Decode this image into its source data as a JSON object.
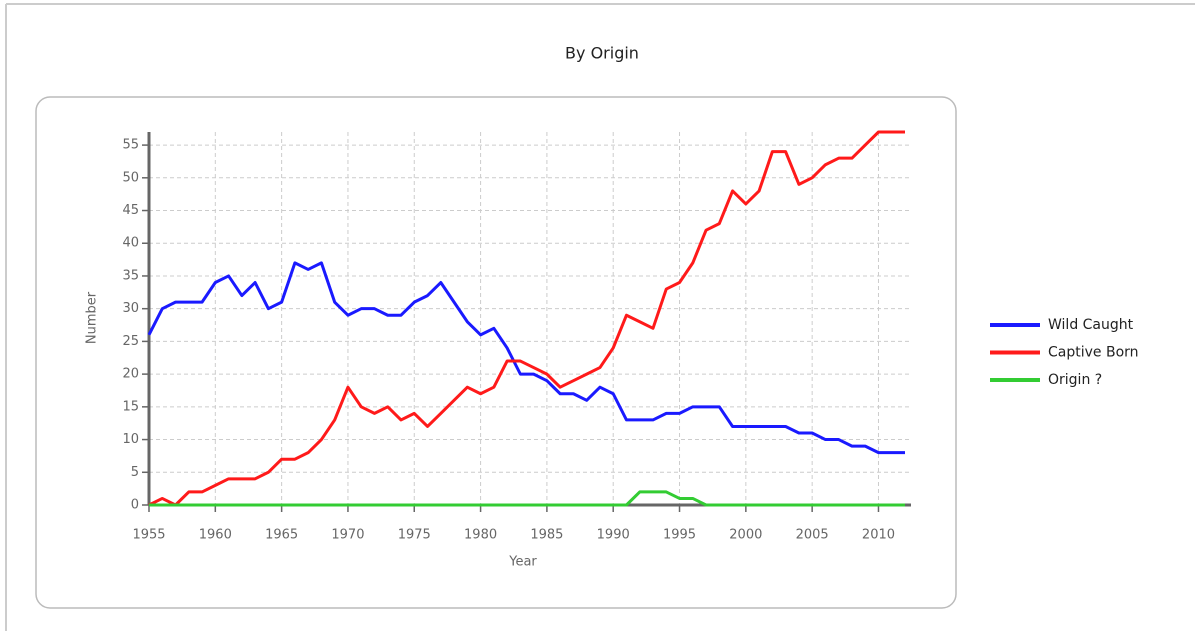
{
  "chart_data": {
    "type": "line",
    "title": "By Origin",
    "x_label": "Year",
    "y_label": "Number",
    "x": [
      1955,
      1956,
      1957,
      1958,
      1959,
      1960,
      1961,
      1962,
      1963,
      1964,
      1965,
      1966,
      1967,
      1968,
      1969,
      1970,
      1971,
      1972,
      1973,
      1974,
      1975,
      1976,
      1977,
      1978,
      1979,
      1980,
      1981,
      1982,
      1983,
      1984,
      1985,
      1986,
      1987,
      1988,
      1989,
      1990,
      1991,
      1992,
      1993,
      1994,
      1995,
      1996,
      1997,
      1998,
      1999,
      2000,
      2001,
      2002,
      2003,
      2004,
      2005,
      2006,
      2007,
      2008,
      2009,
      2010,
      2011,
      2012
    ],
    "series": [
      {
        "name": "Wild Caught",
        "color": "#1a1aff",
        "values": [
          26,
          30,
          31,
          31,
          31,
          34,
          35,
          32,
          34,
          30,
          31,
          37,
          36,
          37,
          31,
          29,
          30,
          30,
          29,
          29,
          31,
          32,
          34,
          31,
          28,
          26,
          27,
          24,
          20,
          20,
          19,
          17,
          17,
          16,
          18,
          17,
          13,
          13,
          13,
          14,
          14,
          15,
          15,
          15,
          12,
          12,
          12,
          12,
          12,
          11,
          11,
          10,
          10,
          9,
          9,
          8,
          8,
          8
        ]
      },
      {
        "name": "Captive Born",
        "color": "#ff1a1a",
        "values": [
          0,
          1,
          0,
          2,
          2,
          3,
          4,
          4,
          4,
          5,
          7,
          7,
          8,
          10,
          13,
          18,
          15,
          14,
          15,
          13,
          14,
          12,
          14,
          16,
          18,
          17,
          18,
          22,
          22,
          21,
          20,
          18,
          19,
          20,
          21,
          24,
          29,
          28,
          27,
          33,
          34,
          37,
          42,
          43,
          48,
          46,
          48,
          54,
          54,
          49,
          50,
          52,
          53,
          53,
          55,
          57,
          57,
          57
        ]
      },
      {
        "name": "Origin ?",
        "color": "#33cc33",
        "values": [
          0,
          0,
          0,
          0,
          0,
          0,
          0,
          0,
          0,
          0,
          0,
          0,
          0,
          0,
          0,
          0,
          0,
          0,
          0,
          0,
          0,
          0,
          0,
          0,
          0,
          0,
          0,
          0,
          0,
          0,
          0,
          0,
          0,
          0,
          0,
          0,
          0,
          2,
          2,
          2,
          1,
          1,
          0,
          0,
          0,
          0,
          0,
          0,
          0,
          0,
          0,
          0,
          0,
          0,
          0,
          0,
          0,
          0
        ]
      }
    ],
    "xlim": [
      1955,
      2012
    ],
    "ylim": [
      0,
      57
    ],
    "xticks": [
      1955,
      1960,
      1965,
      1970,
      1975,
      1980,
      1985,
      1990,
      1995,
      2000,
      2005,
      2010
    ],
    "yticks": [
      0,
      5,
      10,
      15,
      20,
      25,
      30,
      35,
      40,
      45,
      50,
      55
    ],
    "grid": true,
    "legend": "right"
  }
}
